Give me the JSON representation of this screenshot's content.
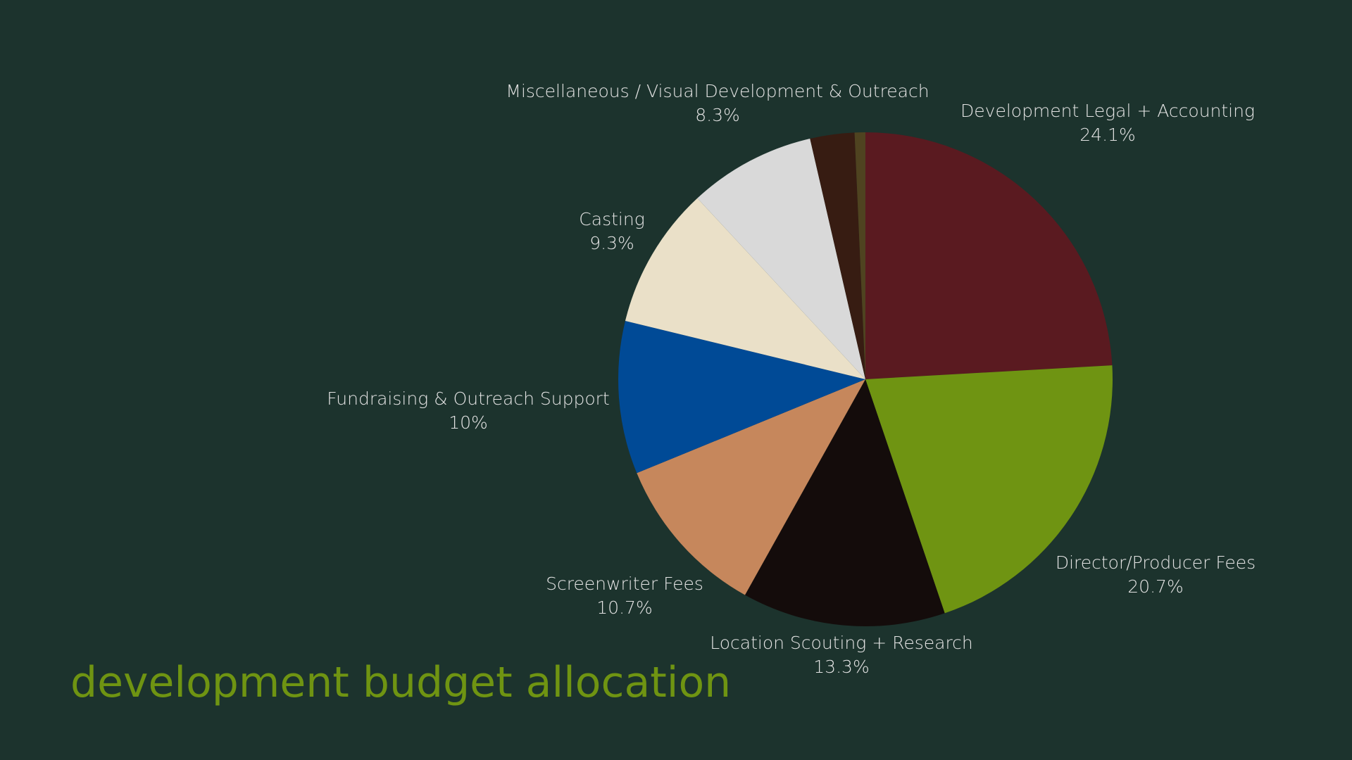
{
  "chart_data": {
    "type": "pie",
    "title": "development budget allocation",
    "categories": [
      "Development Legal + Accounting",
      "Director/Producer Fees",
      "Location Scouting + Research",
      "Screenwriter Fees",
      "Fundraising & Outreach Support",
      "Casting",
      "Miscellaneous / Visual Development & Outreach",
      null,
      null
    ],
    "values": [
      24.1,
      20.7,
      13.3,
      10.7,
      10,
      9.3,
      8.3,
      2.9,
      0.7
    ],
    "value_labels": [
      "24.1%",
      "20.7%",
      "13.3%",
      "10.7%",
      "10%",
      "9.3%",
      "8.3%",
      null,
      null
    ],
    "colors": [
      "#5a1a20",
      "#6f9412",
      "#140c0b",
      "#c6875c",
      "#004a96",
      "#eae0c8",
      "#d9d9d9",
      "#371c12",
      "#4f4320"
    ]
  }
}
